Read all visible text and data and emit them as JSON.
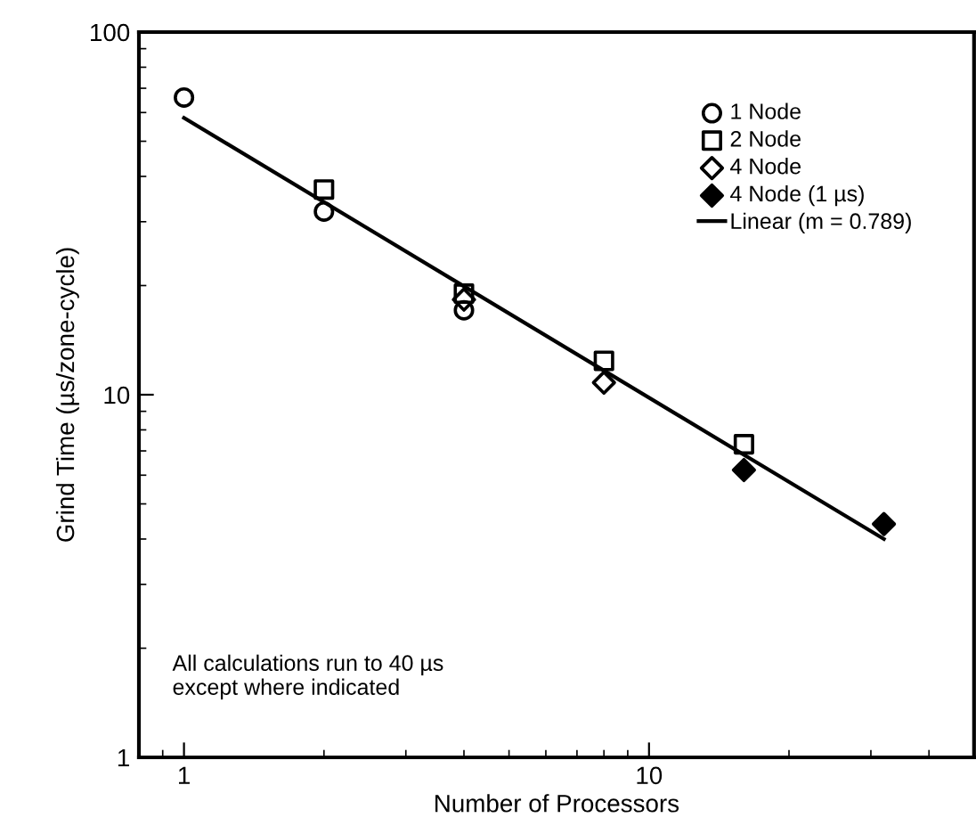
{
  "chart_data": {
    "type": "scatter",
    "xlabel": "Number of Processors",
    "ylabel": "Grind Time (µs/zone-cycle)",
    "log": "xy",
    "xlim": [
      0.8,
      50
    ],
    "ylim": [
      1,
      100
    ],
    "xticks": [
      1,
      10
    ],
    "yticks": [
      1,
      10,
      100
    ],
    "grid": false,
    "legend": "top right",
    "annotations": [
      "All calculations run to 40 µs\nexcept where indicated"
    ],
    "series": [
      {
        "name": "1 Node",
        "color": "#000000",
        "marker": "circle",
        "x": [
          1,
          2,
          4
        ],
        "values": [
          66,
          32,
          17.1
        ]
      },
      {
        "name": "2 Node",
        "color": "#000000",
        "marker": "square",
        "x": [
          2,
          4,
          8,
          16
        ],
        "values": [
          36.8,
          19,
          12.4,
          7.3
        ]
      },
      {
        "name": "4 Node",
        "color": "#000000",
        "marker": "diamond",
        "x": [
          4,
          8
        ],
        "values": [
          18.3,
          10.8
        ]
      },
      {
        "name": "4 Node (1 µs)",
        "color": "#000000",
        "marker": "diamond",
        "x": [
          16,
          32
        ],
        "values": [
          6.2,
          4.4
        ]
      },
      {
        "name": "Linear (m = 0.789)",
        "type": "line",
        "color": "#000000",
        "marker": "none",
        "line_style": "solid",
        "x": [
          1,
          32
        ],
        "values": [
          58,
          4.0
        ]
      }
    ]
  }
}
